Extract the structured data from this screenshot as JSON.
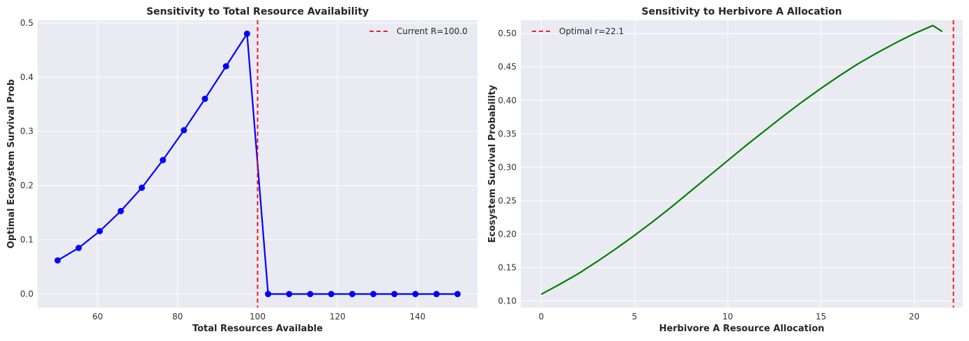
{
  "colors": {
    "axes_bg": "#eaeaf2",
    "grid": "#ffffff",
    "series_left": "#0000ff",
    "series_right": "#008000",
    "ref_line": "#ff0000"
  },
  "chart_data": [
    {
      "type": "line",
      "title": "Sensitivity to Total Resource Availability",
      "xlabel": "Total Resources Available",
      "ylabel": "Optimal Ecosystem Survival Prob",
      "xlim": [
        45,
        155
      ],
      "ylim": [
        -0.025,
        0.505
      ],
      "xticks": [
        60,
        80,
        100,
        120,
        140
      ],
      "yticks": [
        0.0,
        0.1,
        0.2,
        0.3,
        0.4,
        0.5
      ],
      "xtick_labels": [
        "60",
        "80",
        "100",
        "120",
        "140"
      ],
      "ytick_labels": [
        "0.0",
        "0.1",
        "0.2",
        "0.3",
        "0.4",
        "0.5"
      ],
      "grid": true,
      "legend_position": "top-right",
      "series": [
        {
          "markers": true,
          "color": "#0000ff",
          "x": [
            50,
            55.26,
            60.53,
            65.79,
            71.05,
            76.32,
            81.58,
            86.84,
            92.11,
            97.37,
            102.63,
            107.89,
            113.16,
            118.42,
            123.68,
            128.95,
            134.21,
            139.47,
            144.74,
            150
          ],
          "y": [
            0.062,
            0.085,
            0.116,
            0.153,
            0.196,
            0.247,
            0.302,
            0.36,
            0.42,
            0.48,
            0.0,
            0.0,
            0.0,
            0.0,
            0.0,
            0.0,
            0.0,
            0.0,
            0.0,
            0.0
          ]
        }
      ],
      "reference_line": {
        "orientation": "vertical",
        "value": 100.0,
        "style": "dashed",
        "color": "#ff0000",
        "label": "Current R=100.0"
      }
    },
    {
      "type": "line",
      "title": "Sensitivity to Herbivore A Allocation",
      "xlabel": "Herbivore A Resource Allocation",
      "ylabel": "Ecosystem Survival Probability",
      "xlim": [
        -1.1,
        22.6
      ],
      "ylim": [
        0.09,
        0.52
      ],
      "xticks": [
        0,
        5,
        10,
        15,
        20
      ],
      "yticks": [
        0.1,
        0.15,
        0.2,
        0.25,
        0.3,
        0.35,
        0.4,
        0.45,
        0.5
      ],
      "xtick_labels": [
        "0",
        "5",
        "10",
        "15",
        "20"
      ],
      "ytick_labels": [
        "0.10",
        "0.15",
        "0.20",
        "0.25",
        "0.30",
        "0.35",
        "0.40",
        "0.45",
        "0.50"
      ],
      "grid": true,
      "legend_position": "top-left",
      "series": [
        {
          "markers": false,
          "color": "#008000",
          "x": [
            0,
            1,
            2,
            3,
            4,
            5,
            6,
            7,
            8,
            9,
            10,
            11,
            12,
            13,
            14,
            15,
            16,
            17,
            18,
            19,
            20,
            21,
            21.5
          ],
          "y": [
            0.11,
            0.125,
            0.141,
            0.159,
            0.178,
            0.198,
            0.219,
            0.241,
            0.264,
            0.287,
            0.31,
            0.333,
            0.355,
            0.377,
            0.398,
            0.418,
            0.437,
            0.455,
            0.471,
            0.486,
            0.5,
            0.512,
            0.503
          ]
        }
      ],
      "reference_line": {
        "orientation": "vertical",
        "value": 22.1,
        "style": "dashed",
        "color": "#ff0000",
        "label": "Optimal r=22.1"
      }
    }
  ]
}
